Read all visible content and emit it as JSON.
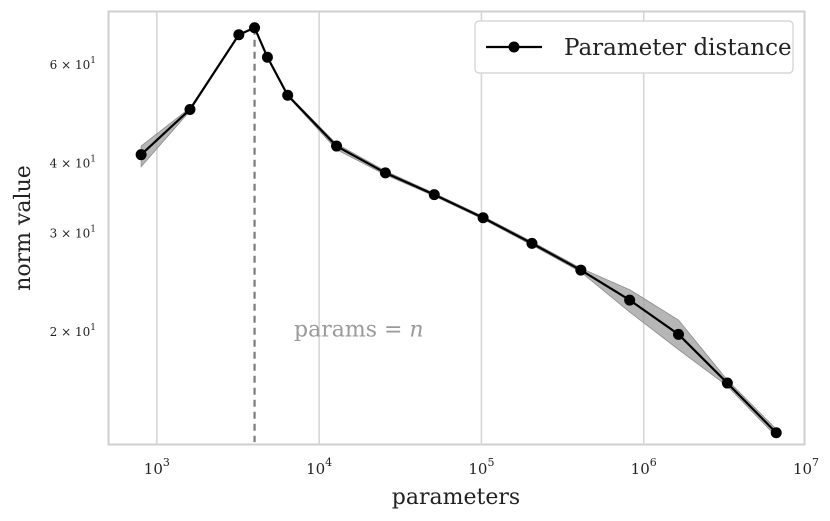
{
  "chart_data": {
    "type": "line",
    "xlabel": "parameters",
    "ylabel": "norm value",
    "x_scale": "log",
    "y_scale": "log",
    "xlim": [
      500,
      10000000
    ],
    "ylim": [
      12.5,
      75
    ],
    "grid": {
      "x": true,
      "y": false
    },
    "legend_position": "top-right",
    "x_ticks": [
      {
        "value": 1000,
        "base": "10",
        "exp": "3"
      },
      {
        "value": 10000,
        "base": "10",
        "exp": "4"
      },
      {
        "value": 100000,
        "base": "10",
        "exp": "5"
      },
      {
        "value": 1000000,
        "base": "10",
        "exp": "6"
      },
      {
        "value": 10000000,
        "base": "10",
        "exp": "7"
      }
    ],
    "y_ticks": [
      {
        "value": 20,
        "label": "2 × 10",
        "exp": "1"
      },
      {
        "value": 30,
        "label": "3 × 10",
        "exp": "1"
      },
      {
        "value": 40,
        "label": "4 × 10",
        "exp": "1"
      },
      {
        "value": 60,
        "label": "6 × 10",
        "exp": "1"
      }
    ],
    "annotation": {
      "text_prefix": "params = ",
      "text_var": "n",
      "vline_x": 4000,
      "vline_ymin": 12.7,
      "text_x": 7000,
      "text_y": 20.3
    },
    "series": [
      {
        "name": "Parameter distance",
        "color": "#000000",
        "band_color": "#9e9e9e",
        "points": [
          {
            "x": 800,
            "y": 41.5,
            "lo": 39.5,
            "hi": 43.0
          },
          {
            "x": 1600,
            "y": 50.0,
            "lo": 49.7,
            "hi": 50.3
          },
          {
            "x": 3200,
            "y": 68.0,
            "lo": 67.8,
            "hi": 68.2
          },
          {
            "x": 4000,
            "y": 70.0,
            "lo": 69.8,
            "hi": 70.2
          },
          {
            "x": 4800,
            "y": 62.0,
            "lo": 61.8,
            "hi": 62.2
          },
          {
            "x": 6400,
            "y": 53.0,
            "lo": 52.8,
            "hi": 53.2
          },
          {
            "x": 12800,
            "y": 43.0,
            "lo": 42.4,
            "hi": 43.4
          },
          {
            "x": 25600,
            "y": 38.5,
            "lo": 38.2,
            "hi": 38.8
          },
          {
            "x": 51200,
            "y": 35.2,
            "lo": 35.0,
            "hi": 35.4
          },
          {
            "x": 102400,
            "y": 32.0,
            "lo": 31.8,
            "hi": 32.2
          },
          {
            "x": 204800,
            "y": 28.8,
            "lo": 28.6,
            "hi": 29.0
          },
          {
            "x": 409600,
            "y": 25.8,
            "lo": 25.6,
            "hi": 26.0
          },
          {
            "x": 819200,
            "y": 22.8,
            "lo": 21.7,
            "hi": 23.8
          },
          {
            "x": 1638400,
            "y": 19.8,
            "lo": 18.6,
            "hi": 21.0
          },
          {
            "x": 3276800,
            "y": 16.2,
            "lo": 16.0,
            "hi": 16.4
          },
          {
            "x": 6553600,
            "y": 13.2,
            "lo": 13.0,
            "hi": 13.4
          }
        ]
      }
    ]
  }
}
